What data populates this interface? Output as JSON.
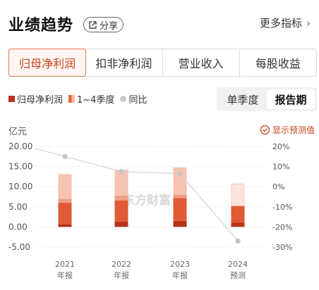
{
  "header": {
    "title": "业绩趋势",
    "share_label": "分享",
    "more_label": "更多指标",
    "more_chevron": "›"
  },
  "tabs": [
    {
      "label": "归母净利润",
      "active": true
    },
    {
      "label": "扣非净利润",
      "active": false
    },
    {
      "label": "营业收入",
      "active": false
    },
    {
      "label": "每股收益",
      "active": false
    }
  ],
  "legend": {
    "items": [
      {
        "label": "归母净利润"
      },
      {
        "label": "1~4季度"
      },
      {
        "label": "同比"
      }
    ]
  },
  "period_toggle": {
    "options": [
      {
        "label": "单季度",
        "active": false
      },
      {
        "label": "报告期",
        "active": true
      }
    ]
  },
  "forecast_toggle_label": "显示预测值",
  "watermark": "东方财富",
  "colors": {
    "accent": "#c8431d",
    "q1": "#b5321b",
    "q2": "#df5a35",
    "q3": "#ef9f85",
    "q4": "#f6c2b2",
    "line": "#d2d2d2",
    "point": "#c5c5c5"
  },
  "chart_data": {
    "type": "bar",
    "stacked": true,
    "unit_label": "亿元",
    "categories": [
      {
        "year": "2021",
        "kind": "年报"
      },
      {
        "year": "2022",
        "kind": "年报"
      },
      {
        "year": "2023",
        "kind": "年报"
      },
      {
        "year": "2024",
        "kind": "预测"
      }
    ],
    "series": [
      {
        "key": "q1",
        "values": [
          0.6,
          1.3,
          1.5,
          null
        ]
      },
      {
        "key": "q2",
        "values": [
          5.4,
          5.3,
          5.7,
          null
        ]
      },
      {
        "key": "q3",
        "values": [
          1.0,
          1.2,
          0.8,
          null
        ]
      },
      {
        "key": "q4",
        "values": [
          6.1,
          6.4,
          6.8,
          null
        ]
      }
    ],
    "forecast": [
      {
        "index": 3,
        "q1": 1.1,
        "q2": 4.1,
        "rest": 5.5
      }
    ],
    "yoy": {
      "values": [
        15,
        7.5,
        6.5,
        -27
      ],
      "unit": "%"
    },
    "y_left": {
      "min": -5,
      "max": 20,
      "ticks": [
        "20.00",
        "15.00",
        "10.00",
        "5.00",
        "0.00",
        "-5.00"
      ],
      "tick_values": [
        20,
        15,
        10,
        5,
        0,
        -5
      ]
    },
    "y_right": {
      "min": -30,
      "max": 20,
      "ticks": [
        "20%",
        "10%",
        "0%",
        "-10%",
        "-20%",
        "-30%"
      ],
      "tick_values": [
        20,
        10,
        0,
        -10,
        -20,
        -30
      ]
    },
    "grid": true,
    "legend_position": "top-left"
  }
}
